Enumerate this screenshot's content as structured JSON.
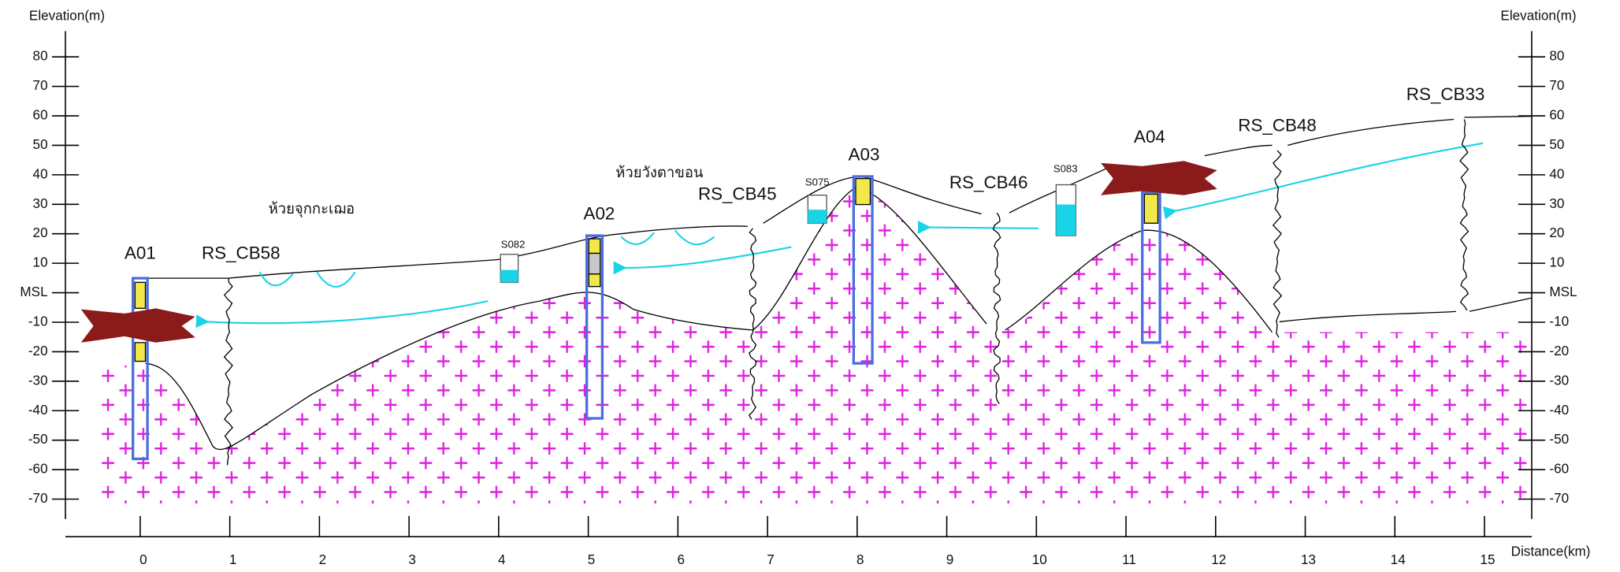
{
  "axes": {
    "left_title": "Elevation(m)",
    "right_title": "Elevation(m)",
    "x_title": "Distance(km)",
    "yticks": [
      80,
      70,
      60,
      50,
      40,
      30,
      20,
      10,
      {
        "value": 0,
        "label": "MSL"
      },
      -10,
      -20,
      -30,
      -40,
      -50,
      -60,
      -70
    ],
    "xticks": [
      0,
      1,
      2,
      3,
      4,
      5,
      6,
      7,
      8,
      9,
      10,
      11,
      12,
      13,
      14,
      15
    ]
  },
  "boreholes": [
    "A01",
    "A02",
    "A03",
    "A04"
  ],
  "resistivity_lines": [
    "RS_CB58",
    "RS_CB45",
    "RS_CB46",
    "RS_CB48",
    "RS_CB33"
  ],
  "water_samples": [
    "S082",
    "S075",
    "S083"
  ],
  "streams": [
    "ห้วยจุกกะเฌอ",
    "ห้วยวังตาขอน"
  ]
}
